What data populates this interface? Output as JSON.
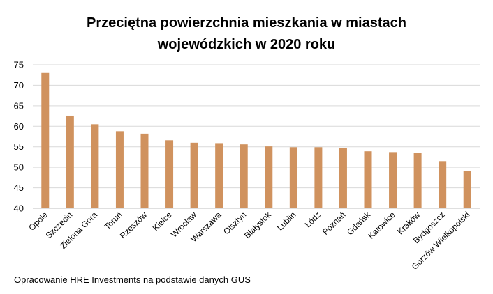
{
  "chart_data": {
    "type": "bar",
    "title_line1": "Przeciętna powierzchnia mieszkania w miastach",
    "title_line2": "wojewódzkich w 2020 roku",
    "xlabel": "",
    "ylabel": "",
    "ylim": [
      40,
      75
    ],
    "yticks": [
      40,
      45,
      50,
      55,
      60,
      65,
      70,
      75
    ],
    "grid": true,
    "legend": "none",
    "bar_color": "#D0925E",
    "grid_color": "#D9D9D9",
    "categories": [
      "Opole",
      "Szczecin",
      "Zielona Góra",
      "Toruń",
      "Rzeszów",
      "Kielce",
      "Wrocław",
      "Warszawa",
      "Olsztyn",
      "Białystok",
      "Lublin",
      "Łódź",
      "Poznań",
      "Gdańsk",
      "Katowice",
      "Kraków",
      "Bydgoszcz",
      "Gorzów Wielkopolski"
    ],
    "values": [
      73.0,
      62.6,
      60.5,
      58.8,
      58.2,
      56.6,
      56.0,
      55.9,
      55.6,
      55.1,
      54.9,
      54.9,
      54.7,
      53.9,
      53.7,
      53.5,
      51.5,
      49.1
    ]
  },
  "footer": {
    "source": "Opracowanie HRE Investments na podstawie danych GUS"
  }
}
